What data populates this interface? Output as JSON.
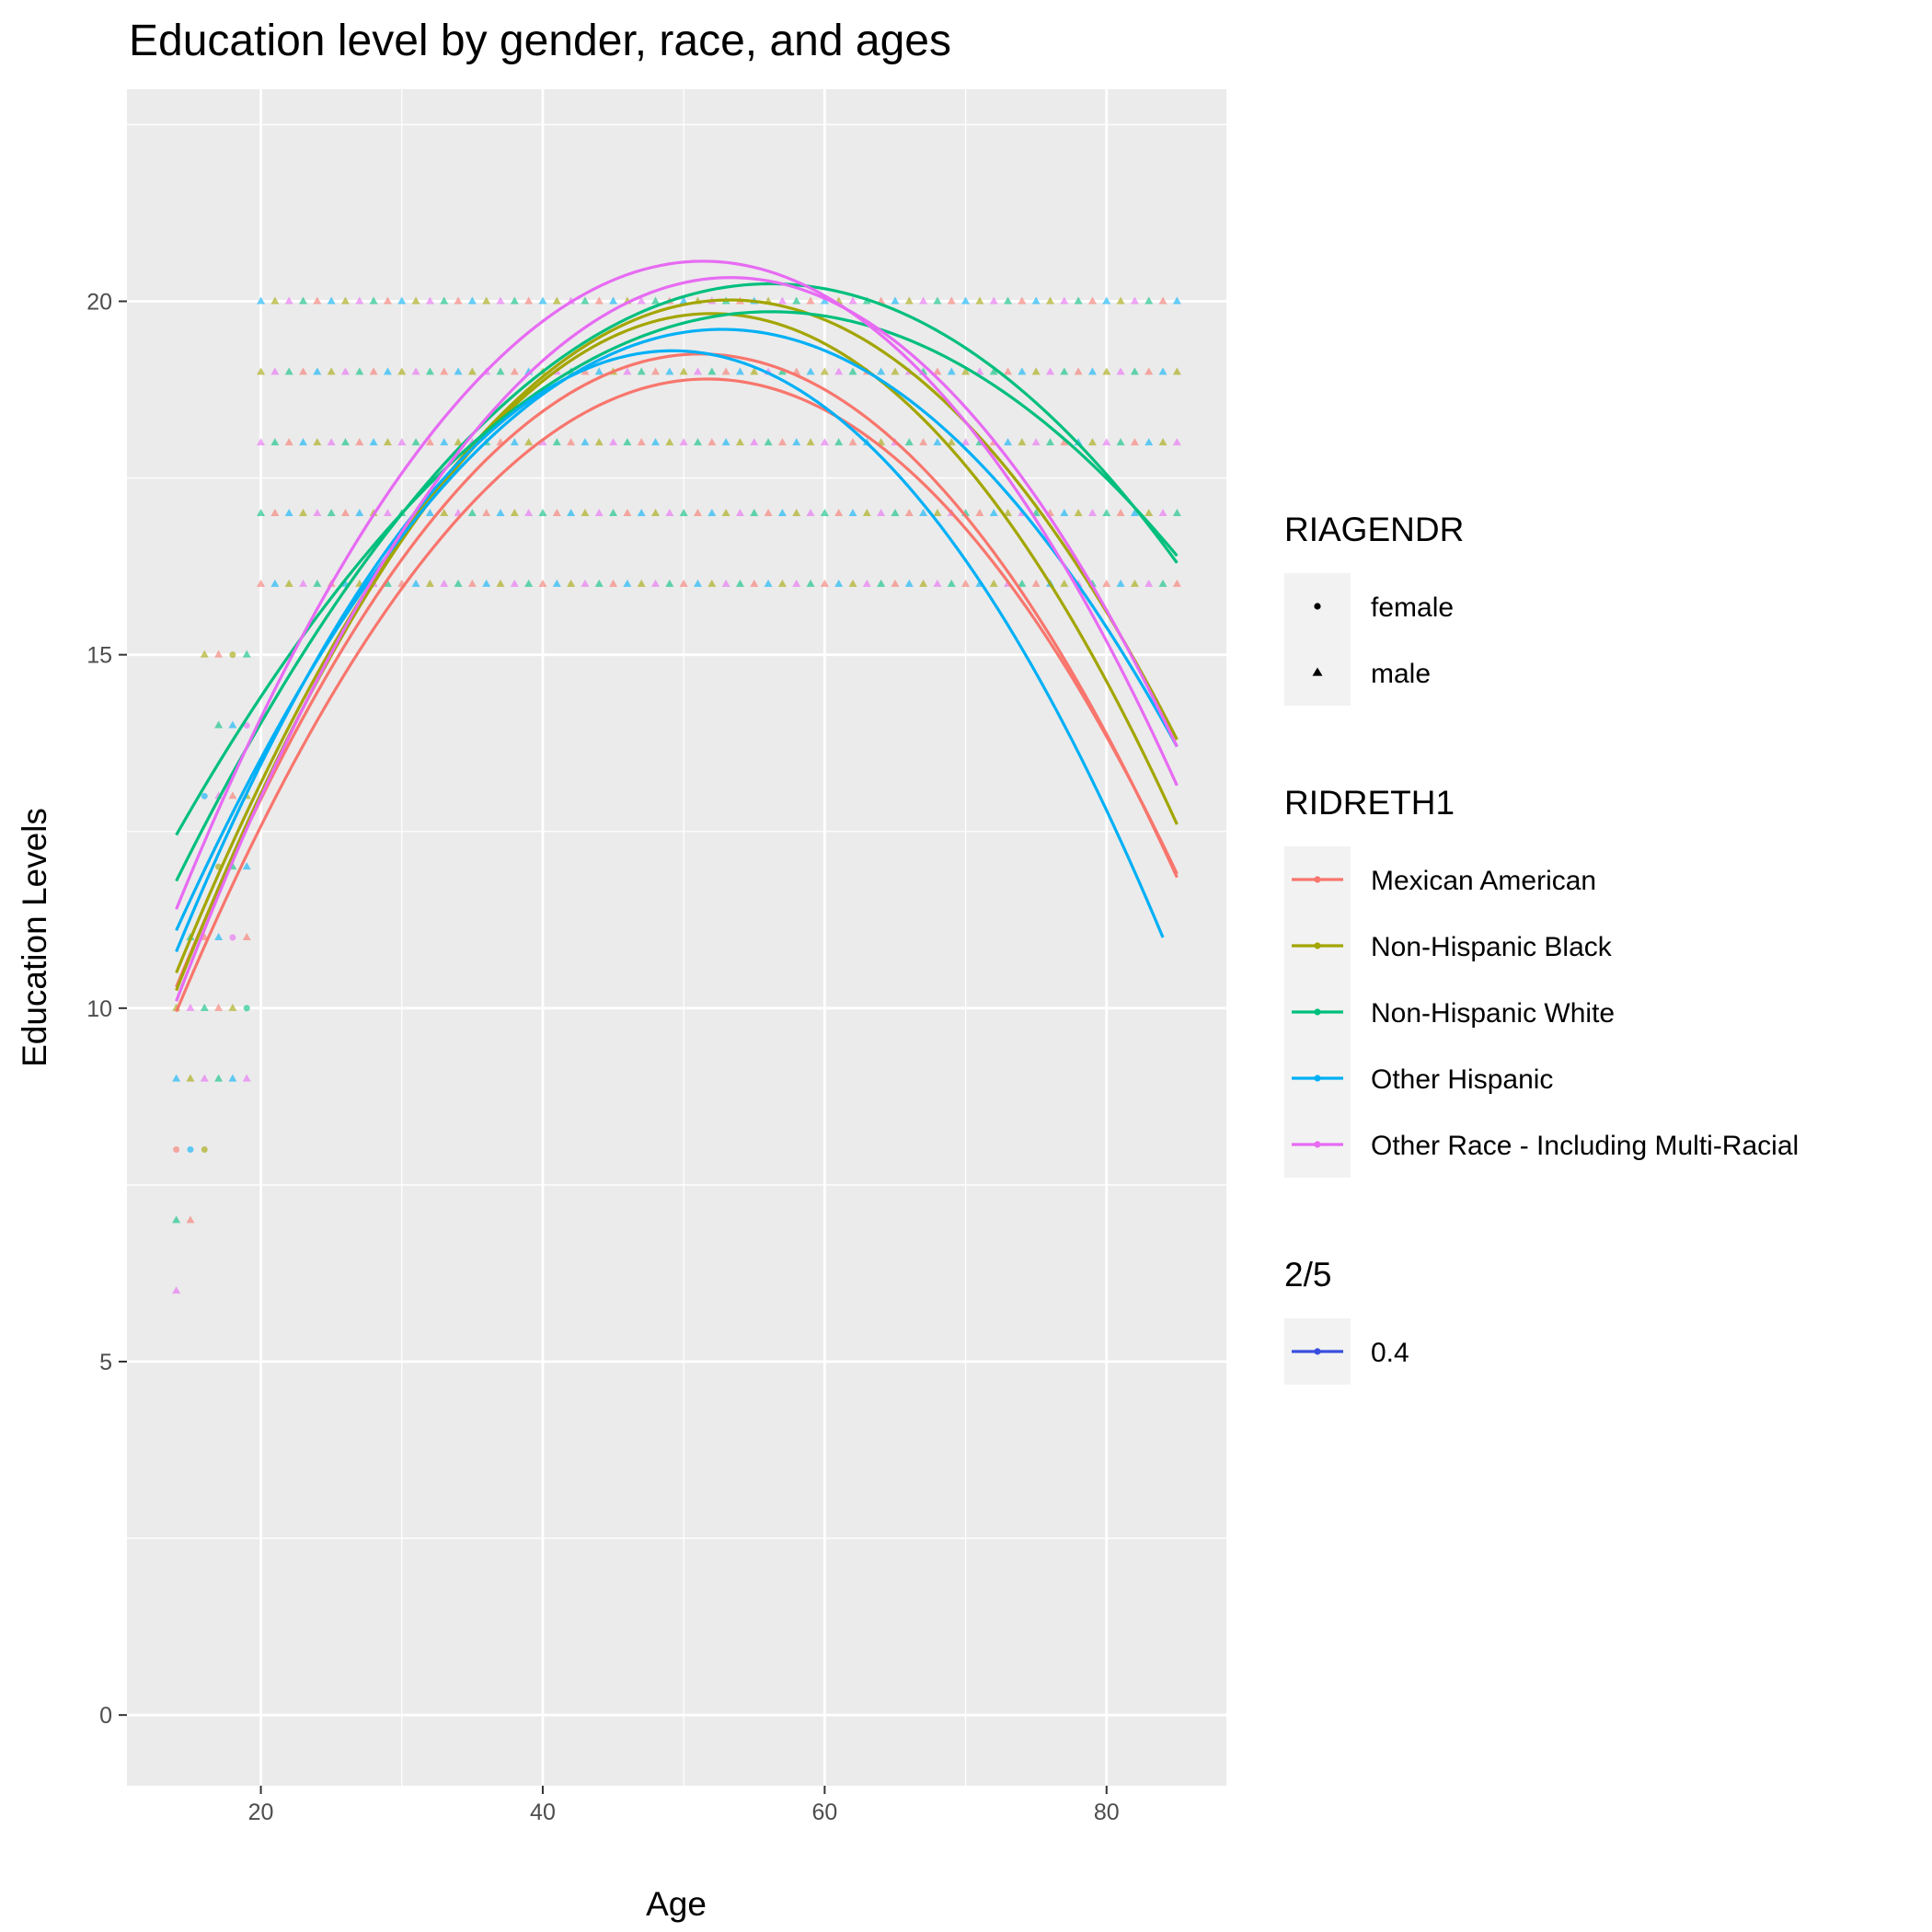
{
  "chart_data": {
    "type": "scatter",
    "title": "Education level by gender, race, and ages",
    "xlabel": "Age",
    "ylabel": "Education Levels",
    "xlim": [
      10.5,
      88.5
    ],
    "ylim": [
      -1,
      23
    ],
    "x_ticks": [
      20,
      40,
      60,
      80
    ],
    "y_ticks": [
      0,
      5,
      10,
      15,
      20
    ],
    "grid": true,
    "legend_position": "right",
    "colors": {
      "panel": "#ebebeb",
      "grid": "#ffffff",
      "text": "#4d4d4d",
      "legend_key_bg": "#f2f2f2",
      "alpha_key": "#3a4fe0"
    },
    "legends": [
      {
        "title": "RIAGENDR",
        "kind": "shape",
        "items": [
          {
            "label": "female",
            "shape": "circle"
          },
          {
            "label": "male",
            "shape": "triangle"
          }
        ]
      },
      {
        "title": "RIDRETH1",
        "kind": "color",
        "items": [
          {
            "label": "Mexican American",
            "color": "#f8766d"
          },
          {
            "label": "Non-Hispanic Black",
            "color": "#a3a500"
          },
          {
            "label": "Non-Hispanic White",
            "color": "#00bf7d"
          },
          {
            "label": "Other Hispanic",
            "color": "#00b0f6"
          },
          {
            "label": "Other Race - Including Multi-Racial",
            "color": "#e76bf3"
          }
        ]
      },
      {
        "title": "2/5",
        "kind": "alpha",
        "items": [
          {
            "label": "0.4",
            "color": "#3a4fe0"
          }
        ]
      }
    ],
    "points": {
      "adult_x_range": [
        20,
        85
      ],
      "adult_levels": [
        16,
        17,
        18,
        19,
        20
      ],
      "youth": [
        {
          "x": 14,
          "y": [
            6,
            7,
            8,
            9,
            10
          ]
        },
        {
          "x": 15,
          "y": [
            7,
            8,
            9,
            10,
            11
          ]
        },
        {
          "x": 16,
          "y": [
            8,
            9,
            10,
            11,
            13,
            15
          ]
        },
        {
          "x": 17,
          "y": [
            9,
            10,
            11,
            12,
            13,
            14,
            15
          ]
        },
        {
          "x": 18,
          "y": [
            9,
            10,
            11,
            12,
            13,
            14,
            15
          ]
        },
        {
          "x": 19,
          "y": [
            9,
            10,
            11,
            12,
            13,
            14,
            15
          ]
        }
      ]
    },
    "series": [
      {
        "race": "Mexican American",
        "color": "#f8766d",
        "x": [
          14,
          52,
          85
        ],
        "y": [
          9.95,
          18.9,
          11.9
        ]
      },
      {
        "race": "Mexican American",
        "color": "#f8766d",
        "x": [
          14,
          52,
          85
        ],
        "y": [
          10.3,
          19.25,
          11.85
        ]
      },
      {
        "race": "Non-Hispanic Black",
        "color": "#a3a500",
        "x": [
          14,
          54,
          85
        ],
        "y": [
          10.25,
          19.8,
          12.6
        ]
      },
      {
        "race": "Non-Hispanic Black",
        "color": "#a3a500",
        "x": [
          14,
          55,
          85
        ],
        "y": [
          10.5,
          20.0,
          13.8
        ]
      },
      {
        "race": "Non-Hispanic White",
        "color": "#00bf7d",
        "x": [
          14,
          53,
          85
        ],
        "y": [
          11.8,
          20.2,
          16.3
        ]
      },
      {
        "race": "Non-Hispanic White",
        "color": "#00bf7d",
        "x": [
          14,
          57,
          85
        ],
        "y": [
          12.45,
          19.85,
          16.4
        ]
      },
      {
        "race": "Other Hispanic",
        "color": "#00b0f6",
        "x": [
          14,
          49,
          84
        ],
        "y": [
          10.8,
          19.3,
          11.0
        ]
      },
      {
        "race": "Other Hispanic",
        "color": "#00b0f6",
        "x": [
          14,
          52,
          85
        ],
        "y": [
          11.1,
          19.6,
          13.7
        ]
      },
      {
        "race": "Other Race - Including Multi-Racial",
        "color": "#e76bf3",
        "x": [
          14,
          53,
          85
        ],
        "y": [
          11.4,
          20.55,
          13.15
        ]
      },
      {
        "race": "Other Race - Including Multi-Racial",
        "color": "#e76bf3",
        "x": [
          14,
          51,
          85
        ],
        "y": [
          10.1,
          20.3,
          13.7
        ]
      }
    ]
  }
}
